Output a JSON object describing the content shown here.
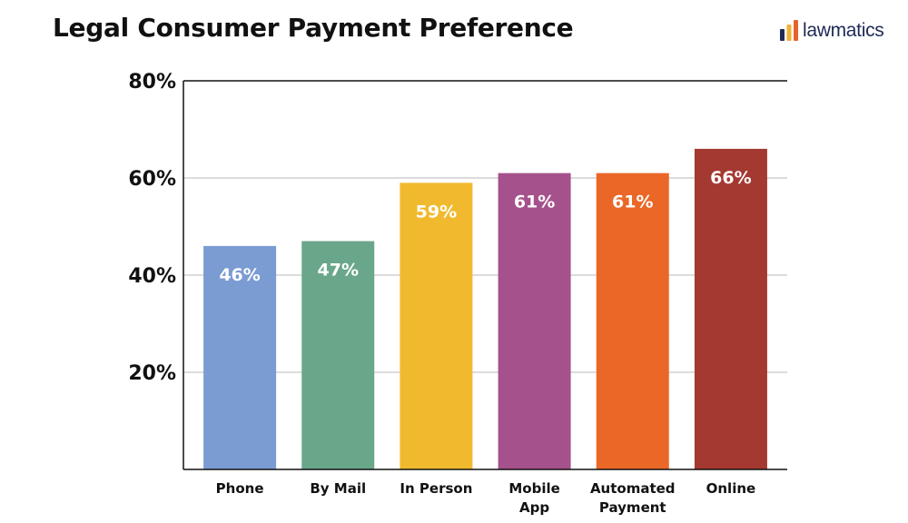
{
  "header": {
    "title": "Legal Consumer Payment Preference",
    "logo_text": "lawmatics",
    "logo_icon": "bar-chart-logo-icon",
    "logo_colors": [
      "#1f2a56",
      "#f2b233",
      "#e8632c"
    ]
  },
  "chart_data": {
    "type": "bar",
    "title": "Legal Consumer Payment Preference",
    "categories": [
      [
        "Phone"
      ],
      [
        "By Mail"
      ],
      [
        "In Person"
      ],
      [
        "Mobile",
        "App"
      ],
      [
        "Automated",
        "Payment"
      ],
      [
        "Online"
      ]
    ],
    "values": [
      46,
      47,
      59,
      61,
      61,
      66
    ],
    "data_labels": [
      "46%",
      "47%",
      "59%",
      "61%",
      "61%",
      "66%"
    ],
    "colors": [
      "#7b9bd3",
      "#6aa78a",
      "#f1ba2e",
      "#a5518c",
      "#eb6727",
      "#a43932"
    ],
    "ylim": [
      0,
      80
    ],
    "yticks": [
      20,
      40,
      60,
      80
    ],
    "ytick_labels": [
      "20%",
      "40%",
      "60%",
      "80%"
    ],
    "xlabel": "",
    "ylabel": "",
    "grid": true,
    "legend": "none"
  }
}
